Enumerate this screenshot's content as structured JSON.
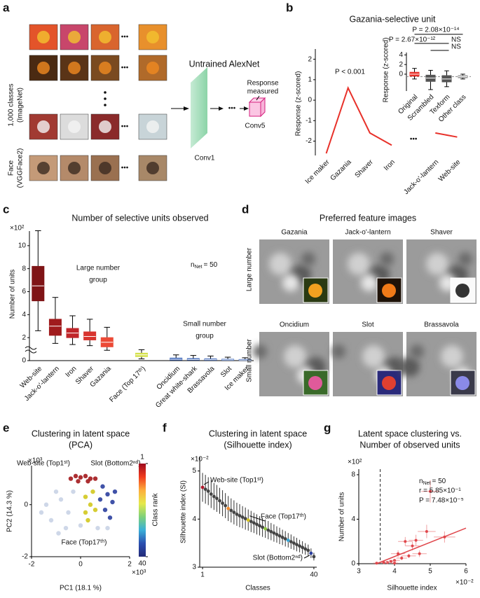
{
  "panel_labels": [
    "a",
    "b",
    "c",
    "d",
    "e",
    "f",
    "g"
  ],
  "panel_a": {
    "title": "Untrained AlexNet",
    "imagenet": [
      "1,000 classes",
      "(ImageNet)"
    ],
    "face": [
      "Face",
      "(VGGFace2)"
    ],
    "conv1": "Conv1",
    "conv5": "Conv5",
    "response": [
      "Response",
      "measured"
    ],
    "ellipsis": "•••"
  },
  "panel_d": {
    "title": "Preferred feature images",
    "row_labels": [
      "Large number",
      "Small number"
    ],
    "classes": [
      "Gazania",
      "Jack-o'-lantern",
      "Shaver",
      "Oncidium",
      "Slot",
      "Brassavola"
    ]
  },
  "chart_data": [
    {
      "type": "line",
      "title": "Gazania-selective unit",
      "y_label": "Response (z-scored)",
      "categories": [
        "Ice maker",
        "Gazania",
        "Shaver",
        "Iron",
        null,
        "Jack-o'-lantern",
        "Web-site"
      ],
      "values": [
        -2.6,
        0.6,
        -1.6,
        -2.2,
        null,
        -1.6,
        -1.8
      ],
      "color": "#e8312a",
      "ylim": [
        -2.7,
        2.5
      ],
      "yticks": [
        -2,
        -1,
        0,
        1,
        2
      ],
      "annotation": "P < 0.001",
      "gap_marker": "•••"
    },
    {
      "type": "box",
      "y_label": "Response (z-scored)",
      "categories": [
        "Original",
        "Scrambled",
        "Texform",
        "Other class"
      ],
      "colors": [
        "#e8312a",
        "#555555",
        "#555555",
        "#9a9a9a"
      ],
      "whislo": [
        -1.0,
        -3.2,
        -2.6,
        -1.0
      ],
      "q1": [
        -0.4,
        -1.5,
        -1.6,
        -0.75
      ],
      "med": [
        0,
        -0.8,
        -1.0,
        -0.5
      ],
      "q3": [
        0.4,
        -0.2,
        -0.3,
        -0.3
      ],
      "whishi": [
        1.2,
        0.8,
        0.7,
        0
      ],
      "baseline": -0.5,
      "ylim": [
        -3.5,
        4.5
      ],
      "yticks": [
        0,
        2,
        4
      ],
      "annotations": [
        "P = 2.08×10⁻¹⁴",
        "P = 2.67×10⁻¹²",
        "NS",
        "NS"
      ]
    },
    {
      "type": "box",
      "title": "Number of selective units observed",
      "y_label": "Number of units",
      "y_multiplier": "×10²",
      "categories": [
        "Web-site",
        "Jack-o'-lantern",
        "Iron",
        "Shaver",
        "Gazania",
        null,
        "Face (Top 17ᵗʰ)",
        null,
        "Oncidium",
        "Great white-shark",
        "Brassavola",
        "Slot",
        "Ice maker"
      ],
      "whislo": [
        2.6,
        1.5,
        1.4,
        1.3,
        0.9,
        null,
        0.15,
        null,
        0,
        0,
        0,
        0,
        0
      ],
      "q1": [
        5.2,
        2.2,
        2.0,
        1.8,
        1.2,
        null,
        0.35,
        null,
        0.05,
        0.05,
        0.04,
        0.03,
        0.02
      ],
      "med": [
        6.5,
        3.0,
        2.4,
        2.1,
        1.6,
        null,
        0.5,
        null,
        0.12,
        0.1,
        0.08,
        0.07,
        0.05
      ],
      "q3": [
        8.2,
        3.6,
        2.8,
        2.5,
        2.0,
        null,
        0.65,
        null,
        0.22,
        0.18,
        0.15,
        0.12,
        0.1
      ],
      "whishi": [
        11.3,
        5.5,
        3.9,
        3.6,
        2.9,
        null,
        0.95,
        null,
        0.5,
        0.45,
        0.4,
        0.3,
        0.25
      ],
      "colors": [
        "#7f1416",
        "#a01b1d",
        "#c0262a",
        "#d8342f",
        "#ec4a36",
        null,
        "#d4e04a",
        null,
        "#3b64b8",
        "#3b64b8",
        "#3b64b8",
        "#3b64b8",
        "#3b64b8"
      ],
      "ylim": [
        0,
        12
      ],
      "yticks": [
        0,
        2,
        4,
        6,
        8,
        10
      ],
      "large_group": [
        "Large number",
        "group"
      ],
      "small_group": [
        "Small number",
        "group"
      ],
      "n_net": {
        "n": "n",
        "sub": "Net",
        "rest": "= 50"
      }
    },
    {
      "type": "scatter",
      "title": [
        "Clustering in latent space",
        "(PCA)"
      ],
      "x_label": "PC1 (18.1 %)",
      "y_label": "PC2 (14.3 %)",
      "x_multiplier": "×10³",
      "y_multiplier": "×10³",
      "xlim": [
        -2,
        2
      ],
      "xticks": [
        -2,
        0,
        2
      ],
      "ylim": [
        -2,
        1.5
      ],
      "yticks": [
        -2,
        0
      ],
      "series": [
        {
          "color": "#c9d3e6",
          "x": [
            -1.4,
            -1.0,
            -1.2,
            -0.6,
            -0.8,
            -0.3,
            -0.5,
            0,
            0.7,
            -1.6,
            -0.9,
            1.1
          ],
          "y": [
            0,
            0.5,
            -0.6,
            -0.9,
            0.2,
            0.5,
            -0.3,
            -0.8,
            -0.9,
            -0.3,
            -1.1,
            -0.9
          ]
        },
        {
          "name": "Web-site (Top1ˢᵗ)",
          "color": "#a3181c",
          "x": [
            -0.4,
            -0.2,
            0,
            0.2,
            0.4,
            -0.1,
            0.3,
            0.6
          ],
          "y": [
            1.0,
            1.1,
            1.05,
            1.1,
            1.0,
            0.9,
            0.9,
            1.0
          ]
        },
        {
          "name": "Face (Top17ᵗʰ)",
          "color": "#d2c81e",
          "x": [
            0.2,
            0.4,
            0.2,
            0.5,
            0.3,
            0.6
          ],
          "y": [
            0.3,
            0,
            -0.3,
            0.5,
            -0.6,
            -0.2
          ]
        },
        {
          "name": "Slot (Bottom2ⁿᵈ)",
          "color": "#2b3f9e",
          "x": [
            0.9,
            1.1,
            1.3,
            1.0,
            1.4,
            1.2,
            0.8
          ],
          "y": [
            0.7,
            0.4,
            0.1,
            -0.2,
            0.5,
            -0.5,
            0.2
          ]
        }
      ],
      "colorbar": {
        "label": "Class rank",
        "ticks": [
          1,
          40
        ],
        "colors": [
          "#9e0a1e",
          "#f03c1e",
          "#fdae3c",
          "#e6e94a",
          "#7fd17a",
          "#3ab0d8",
          "#2b4fb0",
          "#232a78"
        ]
      }
    },
    {
      "type": "errorbar",
      "title": [
        "Clustering in latent space",
        "(Silhouette index)"
      ],
      "x_label": "Classes",
      "y_label": "Silhouette index (SI)",
      "y_multiplier": "×10⁻²",
      "x": [
        1,
        2,
        3,
        4,
        5,
        6,
        7,
        8,
        9,
        10,
        11,
        12,
        13,
        14,
        15,
        16,
        17,
        18,
        19,
        20,
        21,
        22,
        23,
        24,
        25,
        26,
        27,
        28,
        29,
        30,
        31,
        32,
        33,
        34,
        35,
        36,
        37,
        38,
        39,
        40
      ],
      "values": [
        4.66,
        4.62,
        4.58,
        4.52,
        4.47,
        4.43,
        4.38,
        4.33,
        4.28,
        4.22,
        4.18,
        4.14,
        4.1,
        4.07,
        4.04,
        4.01,
        3.98,
        3.95,
        3.92,
        3.89,
        3.86,
        3.83,
        3.8,
        3.77,
        3.74,
        3.71,
        3.68,
        3.65,
        3.62,
        3.59,
        3.56,
        3.53,
        3.5,
        3.47,
        3.44,
        3.41,
        3.38,
        3.35,
        3.29,
        3.22
      ],
      "errors": [
        0.3,
        0.3,
        0.29,
        0.29,
        0.28,
        0.28,
        0.27,
        0.27,
        0.26,
        0.26,
        0.25,
        0.25,
        0.24,
        0.24,
        0.23,
        0.23,
        0.22,
        0.22,
        0.21,
        0.21,
        0.2,
        0.2,
        0.19,
        0.19,
        0.18,
        0.18,
        0.17,
        0.17,
        0.16,
        0.16,
        0.15,
        0.15,
        0.14,
        0.14,
        0.13,
        0.13,
        0.12,
        0.12,
        0.1,
        0.08
      ],
      "colors": [
        "#b2182b",
        "#444",
        "#444",
        "#444",
        "#444",
        "#444",
        "#444",
        "#444",
        "#444",
        "#f08a2c",
        "#444",
        "#444",
        "#444",
        "#444",
        "#444",
        "#444",
        "#d4c21e",
        "#444",
        "#444",
        "#444",
        "#444",
        "#444",
        "#8cc63f",
        "#444",
        "#444",
        "#444",
        "#444",
        "#444",
        "#444",
        "#444",
        "#37a5d6",
        "#444",
        "#444",
        "#444",
        "#444",
        "#444",
        "#444",
        "#444",
        "#2b3f9e",
        "#444"
      ],
      "xlim": [
        0,
        41
      ],
      "xticks": [
        1,
        40
      ],
      "ylim": [
        3,
        5.3
      ],
      "yticks": [
        3,
        4,
        5
      ],
      "annotations": [
        "Web-site (Top1ˢᵗ)",
        "Face (Top17ᵗʰ)",
        "Slot (Bottom2ⁿᵈ)"
      ]
    },
    {
      "type": "scatter",
      "title": [
        "Latent space clustering vs.",
        "Number of observed units"
      ],
      "x_label": "Silhouette index",
      "y_label": "Number of units",
      "x_multiplier": "×10⁻²",
      "y_multiplier": "×10²",
      "color": "#e0474c",
      "x": [
        5.0,
        5.4,
        4.9,
        4.6,
        4.3,
        4.5,
        4.1,
        4.7,
        4.4,
        4.2,
        4.0,
        3.9,
        3.8,
        3.7,
        4.0,
        3.5
      ],
      "values": [
        6.5,
        2.4,
        2.9,
        2.1,
        2.0,
        1.6,
        0.9,
        0.9,
        0.7,
        0.5,
        0.3,
        0.2,
        0.1,
        0.1,
        0.05,
        0.05
      ],
      "xerr": [
        0.25,
        0.3,
        0.25,
        0.2,
        0.2,
        0.2,
        0.2,
        0.2,
        0.2,
        0.15,
        0.15,
        0.15,
        0.1,
        0.1,
        0.1,
        0.1
      ],
      "yerr": [
        1.0,
        0.5,
        0.6,
        0.5,
        0.4,
        0.4,
        0.3,
        0.3,
        0.2,
        0.2,
        0.1,
        0.1,
        0.05,
        0.05,
        0.05,
        0.05
      ],
      "vline": 3.6,
      "fit": {
        "x": [
          3.5,
          6
        ],
        "y": [
          0,
          3.2
        ]
      },
      "xlim": [
        3,
        6
      ],
      "xticks": [
        3,
        4,
        5,
        6
      ],
      "ylim": [
        0,
        8.5
      ],
      "yticks": [
        0,
        4,
        8
      ],
      "n_net": {
        "n": "n",
        "sub": "Net",
        "rest": "= 50"
      },
      "stats": [
        "r = 5.85×10⁻¹",
        "P = 7.48×10⁻⁵"
      ]
    }
  ]
}
